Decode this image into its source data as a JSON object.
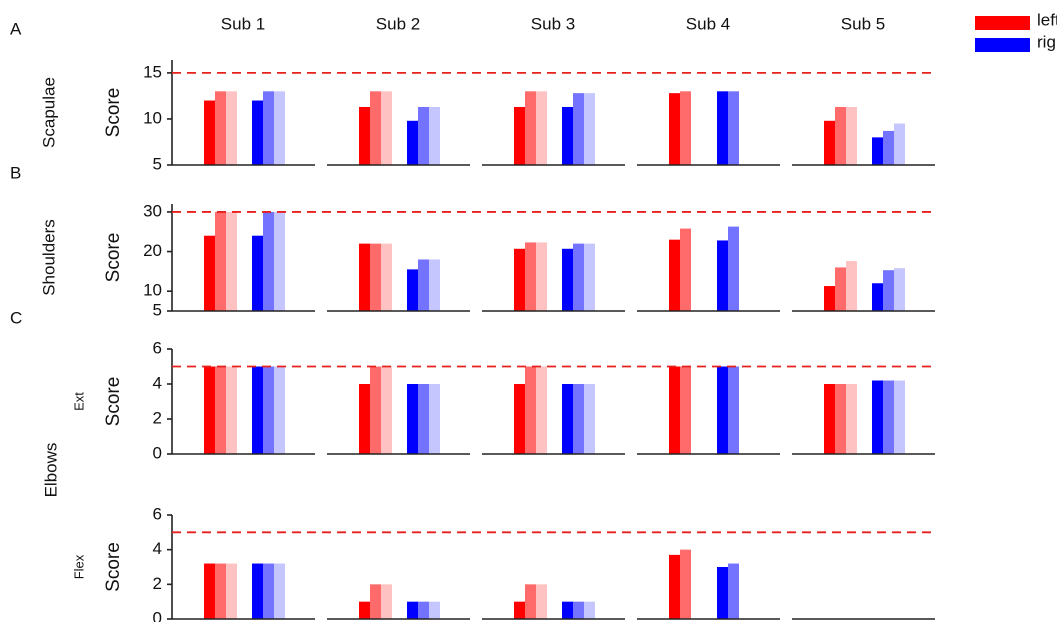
{
  "subjects": [
    "Sub 1",
    "Sub 2",
    "Sub 3",
    "Sub 4",
    "Sub 5"
  ],
  "chart_data": [
    {
      "type": "bar",
      "panel_label": "A",
      "row_label": "Scapulae",
      "ylabel": "Score",
      "ylim": [
        5,
        16.4
      ],
      "yticks": [
        5,
        10,
        15
      ],
      "reference_line": 15,
      "reference_color": "#e8201c",
      "series": [
        {
          "name": "left",
          "color": "#ff0000",
          "colors": [
            "#ff0000",
            "#ff6b6b",
            "#ffc2c2"
          ],
          "values": [
            [
              12,
              13,
              13
            ],
            [
              11.3,
              13,
              13
            ],
            [
              11.3,
              13,
              13
            ],
            [
              12.8,
              13,
              null
            ],
            [
              9.8,
              11.3,
              11.3
            ]
          ]
        },
        {
          "name": "right",
          "color": "#0000ff",
          "colors": [
            "#0000ff",
            "#7373ff",
            "#c6c6ff"
          ],
          "values": [
            [
              12,
              13,
              13
            ],
            [
              9.8,
              11.3,
              11.3
            ],
            [
              11.3,
              12.8,
              12.8
            ],
            [
              13,
              13,
              null
            ],
            [
              8,
              8.7,
              9.5
            ]
          ]
        }
      ]
    },
    {
      "type": "bar",
      "panel_label": "B",
      "row_label": "Shoulders",
      "ylabel": "Score",
      "ylim": [
        5,
        32
      ],
      "yticks": [
        5,
        10,
        20,
        30
      ],
      "reference_line": 30,
      "reference_color": "#e8201c",
      "series": [
        {
          "colors": [
            "#ff0000",
            "#ff6b6b",
            "#ffc2c2"
          ],
          "values": [
            [
              24,
              30,
              30
            ],
            [
              22,
              22,
              22
            ],
            [
              20.7,
              22.3,
              22.3
            ],
            [
              23,
              25.8,
              null
            ],
            [
              11.3,
              16,
              17.6
            ]
          ]
        },
        {
          "colors": [
            "#0000ff",
            "#7373ff",
            "#c6c6ff"
          ],
          "values": [
            [
              24,
              30,
              30
            ],
            [
              15.5,
              18,
              18
            ],
            [
              20.7,
              22,
              22
            ],
            [
              22.8,
              26.3,
              null
            ],
            [
              12,
              15.3,
              15.8
            ]
          ]
        }
      ]
    },
    {
      "type": "bar",
      "panel_label": "C",
      "group_label": "Elbows",
      "row_label": "Ext",
      "ylabel": "Score",
      "ylim": [
        0,
        6
      ],
      "yticks": [
        0,
        2,
        4,
        6
      ],
      "reference_line": 5,
      "reference_color": "#e8201c",
      "series": [
        {
          "colors": [
            "#ff0000",
            "#ff6b6b",
            "#ffc2c2"
          ],
          "values": [
            [
              5,
              5,
              5
            ],
            [
              4,
              5,
              5
            ],
            [
              4,
              5,
              5
            ],
            [
              5,
              5,
              null
            ],
            [
              4,
              4,
              4
            ]
          ]
        },
        {
          "colors": [
            "#0000ff",
            "#7373ff",
            "#c6c6ff"
          ],
          "values": [
            [
              5,
              5,
              5
            ],
            [
              4,
              4,
              4
            ],
            [
              4,
              4,
              4
            ],
            [
              5,
              5,
              null
            ],
            [
              4.2,
              4.2,
              4.2
            ]
          ]
        }
      ]
    },
    {
      "type": "bar",
      "row_label": "Flex",
      "ylabel": "Score",
      "ylim": [
        0,
        6
      ],
      "yticks": [
        0,
        2,
        4,
        6
      ],
      "reference_line": 5,
      "reference_color": "#e8201c",
      "series": [
        {
          "colors": [
            "#ff0000",
            "#ff6b6b",
            "#ffc2c2"
          ],
          "values": [
            [
              3.2,
              3.2,
              3.2
            ],
            [
              1,
              2,
              2
            ],
            [
              1,
              2,
              2
            ],
            [
              3.7,
              4,
              null
            ],
            [
              null,
              null,
              null
            ]
          ]
        },
        {
          "colors": [
            "#0000ff",
            "#7373ff",
            "#c6c6ff"
          ],
          "values": [
            [
              3.2,
              3.2,
              3.2
            ],
            [
              1,
              1,
              1
            ],
            [
              1,
              1,
              1
            ],
            [
              3,
              3.2,
              null
            ],
            [
              null,
              null,
              null
            ]
          ]
        }
      ]
    }
  ]
}
